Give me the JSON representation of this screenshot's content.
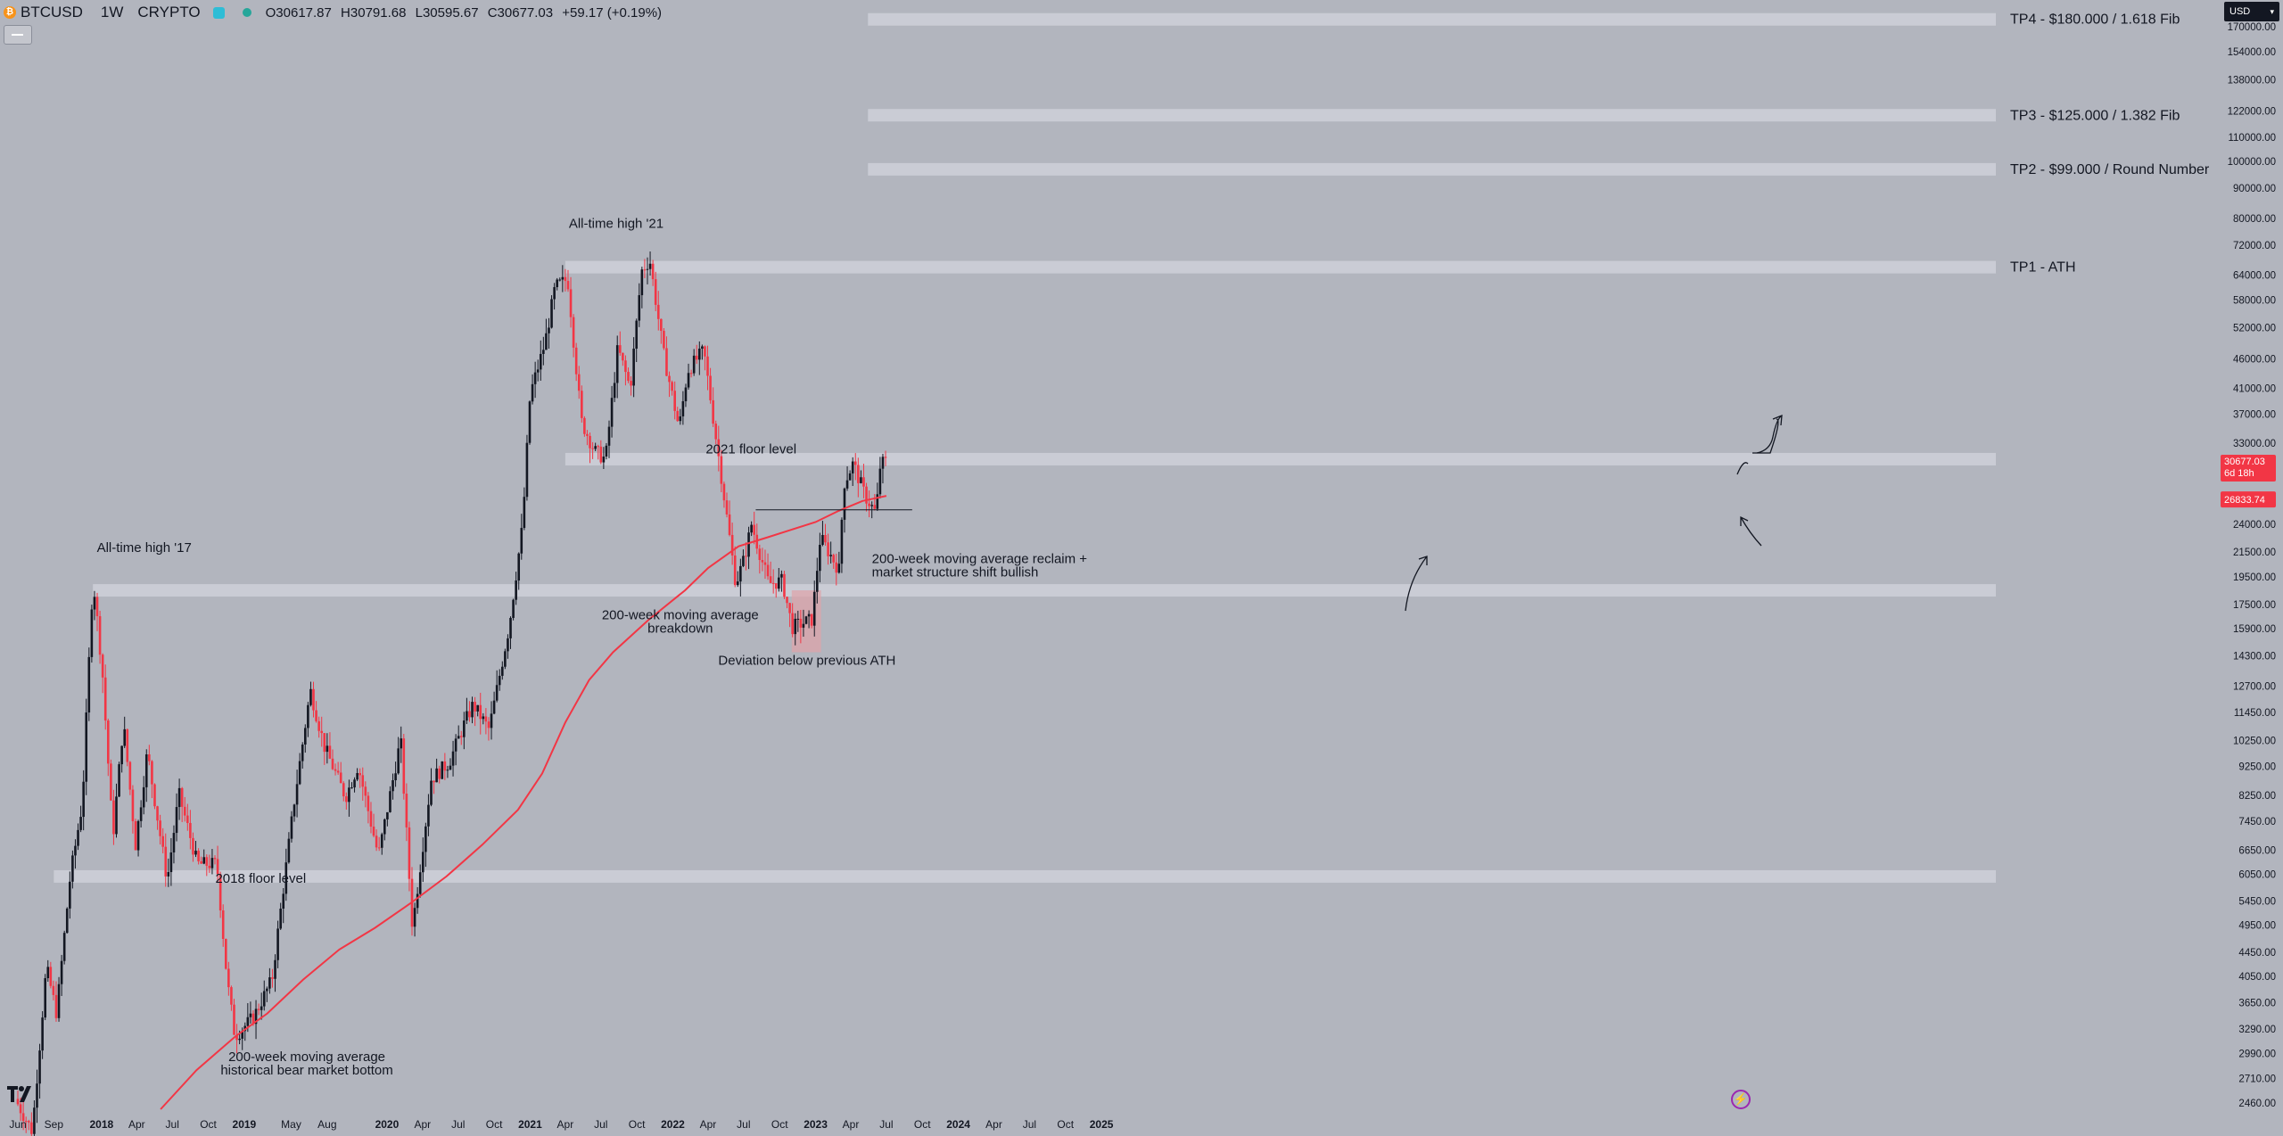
{
  "header": {
    "symbol": "BTCUSD",
    "timeframe": "1W",
    "exchange": "CRYPTO",
    "ohlc": {
      "open": "O30617.87",
      "high": "H30791.68",
      "low": "L30595.67",
      "close": "C30677.03",
      "change": "+59.17 (+0.19%)"
    }
  },
  "currency": "USD",
  "colors": {
    "background": "#b2b5be",
    "up_candle": "#131722",
    "down_candle": "#f23645",
    "ma_line": "#f23645",
    "zone": "#d1d4dc",
    "deviation_box": "#e0a3a8"
  },
  "chart_data": {
    "type": "candlestick",
    "title": "BTCUSD · 1W · CRYPTO",
    "y_scale": "log",
    "y_ticks": [
      170000,
      154000,
      138000,
      122000,
      110000,
      100000,
      90000,
      80000,
      72000,
      64000,
      58000,
      52000,
      46000,
      41000,
      37000,
      33000,
      24000,
      21500,
      19500,
      17500,
      15900,
      14300,
      12700,
      11450,
      10250,
      9250,
      8250,
      7450,
      6650,
      6050,
      5450,
      4950,
      4450,
      4050,
      3650,
      3290,
      2990,
      2710,
      2460
    ],
    "y_tick_labels": [
      "170000.00",
      "154000.00",
      "138000.00",
      "122000.00",
      "110000.00",
      "100000.00",
      "90000.00",
      "80000.00",
      "72000.00",
      "64000.00",
      "58000.00",
      "52000.00",
      "46000.00",
      "41000.00",
      "37000.00",
      "33000.00",
      "24000.00",
      "21500.00",
      "19500.00",
      "17500.00",
      "15900.00",
      "14300.00",
      "12700.00",
      "11450.00",
      "10250.00",
      "9250.00",
      "8250.00",
      "7450.00",
      "6650.00",
      "6050.00",
      "5450.00",
      "4950.00",
      "4450.00",
      "4050.00",
      "3650.00",
      "3290.00",
      "2990.00",
      "2710.00",
      "2460.00"
    ],
    "x_ticks": [
      {
        "date": "2017-06-01",
        "label": "Jun",
        "bold": false
      },
      {
        "date": "2017-09-01",
        "label": "Sep",
        "bold": false
      },
      {
        "date": "2018-01-01",
        "label": "2018",
        "bold": true
      },
      {
        "date": "2018-04-01",
        "label": "Apr",
        "bold": false
      },
      {
        "date": "2018-07-01",
        "label": "Jul",
        "bold": false
      },
      {
        "date": "2018-10-01",
        "label": "Oct",
        "bold": false
      },
      {
        "date": "2019-01-01",
        "label": "2019",
        "bold": true
      },
      {
        "date": "2019-05-01",
        "label": "May",
        "bold": false
      },
      {
        "date": "2019-08-01",
        "label": "Aug",
        "bold": false
      },
      {
        "date": "2020-01-01",
        "label": "2020",
        "bold": true
      },
      {
        "date": "2020-04-01",
        "label": "Apr",
        "bold": false
      },
      {
        "date": "2020-07-01",
        "label": "Jul",
        "bold": false
      },
      {
        "date": "2020-10-01",
        "label": "Oct",
        "bold": false
      },
      {
        "date": "2021-01-01",
        "label": "2021",
        "bold": true
      },
      {
        "date": "2021-04-01",
        "label": "Apr",
        "bold": false
      },
      {
        "date": "2021-07-01",
        "label": "Jul",
        "bold": false
      },
      {
        "date": "2021-10-01",
        "label": "Oct",
        "bold": false
      },
      {
        "date": "2022-01-01",
        "label": "2022",
        "bold": true
      },
      {
        "date": "2022-04-01",
        "label": "Apr",
        "bold": false
      },
      {
        "date": "2022-07-01",
        "label": "Jul",
        "bold": false
      },
      {
        "date": "2022-10-01",
        "label": "Oct",
        "bold": false
      },
      {
        "date": "2023-01-01",
        "label": "2023",
        "bold": true
      },
      {
        "date": "2023-04-01",
        "label": "Apr",
        "bold": false
      },
      {
        "date": "2023-07-01",
        "label": "Jul",
        "bold": false
      },
      {
        "date": "2023-10-01",
        "label": "Oct",
        "bold": false
      },
      {
        "date": "2024-01-01",
        "label": "2024",
        "bold": true
      },
      {
        "date": "2024-04-01",
        "label": "Apr",
        "bold": false
      },
      {
        "date": "2024-07-01",
        "label": "Jul",
        "bold": false
      },
      {
        "date": "2024-10-01",
        "label": "Oct",
        "bold": false
      },
      {
        "date": "2025-01-01",
        "label": "2025",
        "bold": true
      }
    ],
    "price_path": [
      [
        "2017-06-01",
        2500
      ],
      [
        "2017-07-15",
        2200
      ],
      [
        "2017-08-20",
        4200
      ],
      [
        "2017-09-15",
        3500
      ],
      [
        "2017-10-20",
        6000
      ],
      [
        "2017-11-20",
        8000
      ],
      [
        "2017-12-17",
        19500
      ],
      [
        "2018-01-10",
        13500
      ],
      [
        "2018-02-06",
        7000
      ],
      [
        "2018-03-05",
        11000
      ],
      [
        "2018-04-05",
        6800
      ],
      [
        "2018-05-05",
        9800
      ],
      [
        "2018-06-25",
        5900
      ],
      [
        "2018-07-25",
        8300
      ],
      [
        "2018-09-10",
        6300
      ],
      [
        "2018-10-30",
        6300
      ],
      [
        "2018-11-25",
        4000
      ],
      [
        "2018-12-15",
        3200
      ],
      [
        "2019-02-01",
        3450
      ],
      [
        "2019-03-20",
        4000
      ],
      [
        "2019-05-15",
        8000
      ],
      [
        "2019-06-26",
        12500
      ],
      [
        "2019-08-01",
        10000
      ],
      [
        "2019-09-24",
        8200
      ],
      [
        "2019-10-26",
        9300
      ],
      [
        "2019-12-17",
        6500
      ],
      [
        "2020-02-12",
        10300
      ],
      [
        "2020-03-13",
        4900
      ],
      [
        "2020-04-30",
        8800
      ],
      [
        "2020-06-15",
        9400
      ],
      [
        "2020-07-25",
        11000
      ],
      [
        "2020-08-15",
        11800
      ],
      [
        "2020-09-25",
        10700
      ],
      [
        "2020-11-15",
        16000
      ],
      [
        "2020-12-20",
        24000
      ],
      [
        "2021-01-08",
        40000
      ],
      [
        "2021-02-15",
        49000
      ],
      [
        "2021-03-13",
        61000
      ],
      [
        "2021-04-14",
        63000
      ],
      [
        "2021-05-19",
        36000
      ],
      [
        "2021-06-22",
        32000
      ],
      [
        "2021-07-20",
        31000
      ],
      [
        "2021-08-20",
        48000
      ],
      [
        "2021-09-21",
        41000
      ],
      [
        "2021-10-20",
        65000
      ],
      [
        "2021-11-10",
        68000
      ],
      [
        "2021-12-15",
        47000
      ],
      [
        "2022-01-24",
        35000
      ],
      [
        "2022-02-15",
        44000
      ],
      [
        "2022-03-28",
        47500
      ],
      [
        "2022-05-09",
        30000
      ],
      [
        "2022-06-18",
        19000
      ],
      [
        "2022-07-10",
        21000
      ],
      [
        "2022-07-28",
        24000
      ],
      [
        "2022-09-10",
        19000
      ],
      [
        "2022-10-15",
        19200
      ],
      [
        "2022-11-09",
        16000
      ],
      [
        "2022-12-30",
        16500
      ],
      [
        "2023-01-20",
        22800
      ],
      [
        "2023-03-10",
        20000
      ],
      [
        "2023-03-20",
        28000
      ],
      [
        "2023-04-14",
        30500
      ],
      [
        "2023-05-15",
        26800
      ],
      [
        "2023-06-12",
        25000
      ],
      [
        "2023-06-21",
        30000
      ],
      [
        "2023-07-01",
        30677
      ]
    ],
    "ma200_path": [
      [
        "2018-06-01",
        2400
      ],
      [
        "2018-09-01",
        2800
      ],
      [
        "2018-12-10",
        3200
      ],
      [
        "2019-03-01",
        3500
      ],
      [
        "2019-06-01",
        4000
      ],
      [
        "2019-09-01",
        4500
      ],
      [
        "2019-12-01",
        4900
      ],
      [
        "2020-03-01",
        5400
      ],
      [
        "2020-06-01",
        6000
      ],
      [
        "2020-09-01",
        6800
      ],
      [
        "2020-12-01",
        7800
      ],
      [
        "2021-02-01",
        9000
      ],
      [
        "2021-04-01",
        11000
      ],
      [
        "2021-06-01",
        13000
      ],
      [
        "2021-08-01",
        14500
      ],
      [
        "2021-11-01",
        16500
      ],
      [
        "2022-02-01",
        18500
      ],
      [
        "2022-04-01",
        20200
      ],
      [
        "2022-06-18",
        22000
      ],
      [
        "2022-09-01",
        22800
      ],
      [
        "2022-11-01",
        23500
      ],
      [
        "2023-01-01",
        24200
      ],
      [
        "2023-03-01",
        25300
      ],
      [
        "2023-05-01",
        26300
      ],
      [
        "2023-07-01",
        26834
      ]
    ],
    "zones": [
      {
        "name": "tp4",
        "label": "TP4 - $180.000 / 1.618 Fib",
        "price": 175000,
        "start": "2023-05-15"
      },
      {
        "name": "tp3",
        "label": "TP3 - $125.000 / 1.382 Fib",
        "price": 120000,
        "start": "2023-05-15"
      },
      {
        "name": "tp2",
        "label": "TP2 - $99.000 / Round Number",
        "price": 97000,
        "start": "2023-05-15"
      },
      {
        "name": "tp1",
        "label": "TP1 - ATH",
        "price": 66000,
        "start": "2021-04-01"
      },
      {
        "name": "floor-2021",
        "label": "",
        "price": 31000,
        "start": "2021-04-01"
      },
      {
        "name": "ath-2017",
        "label": "",
        "price": 18500,
        "start": "2017-12-10"
      },
      {
        "name": "floor-2018",
        "label": "",
        "price": 6000,
        "start": "2017-09-01"
      }
    ],
    "annotations": [
      {
        "name": "ath-17",
        "lines": [
          "All-time high '17"
        ],
        "date": "2017-12-20",
        "price": 21500,
        "align": "start"
      },
      {
        "name": "ath-21",
        "lines": [
          "All-time high '21"
        ],
        "date": "2021-04-10",
        "price": 77000,
        "align": "start"
      },
      {
        "name": "floor-2018",
        "lines": [
          "2018 floor level"
        ],
        "date": "2019-02-12",
        "price": 5850,
        "align": "middle"
      },
      {
        "name": "floor-2021",
        "lines": [
          "2021 floor level"
        ],
        "date": "2022-07-20",
        "price": 31700,
        "align": "middle"
      },
      {
        "name": "ma-bottom",
        "lines": [
          "200-week moving average",
          "historical bear market bottom"
        ],
        "date": "2019-06-10",
        "price": 2900,
        "align": "middle"
      },
      {
        "name": "ma-breakdown",
        "lines": [
          "200-week moving average",
          "breakdown"
        ],
        "date": "2022-01-20",
        "price": 16500,
        "align": "middle"
      },
      {
        "name": "deviation",
        "lines": [
          "Deviation below previous ATH"
        ],
        "date": "2022-12-10",
        "price": 13800,
        "align": "middle"
      },
      {
        "name": "ma-reclaim",
        "lines": [
          "200-week moving average reclaim +",
          "market structure shift bullish"
        ],
        "date": "2023-05-25",
        "price": 20600,
        "align": "start"
      }
    ],
    "price_labels": {
      "last": {
        "text": "30677.03",
        "sub": "6d 18h",
        "price": 30677,
        "color": "#f23645"
      },
      "ma": {
        "text": "26833.74",
        "price": 26834,
        "color": "#f23645"
      }
    },
    "horizontal_line": {
      "price": 25400,
      "start": "2022-08-01",
      "end": "2023-09-05"
    },
    "deviation_box": {
      "start": "2022-11-01",
      "end": "2023-01-15",
      "low": 14500,
      "high": 18500
    },
    "grid": false,
    "legend": "none"
  }
}
